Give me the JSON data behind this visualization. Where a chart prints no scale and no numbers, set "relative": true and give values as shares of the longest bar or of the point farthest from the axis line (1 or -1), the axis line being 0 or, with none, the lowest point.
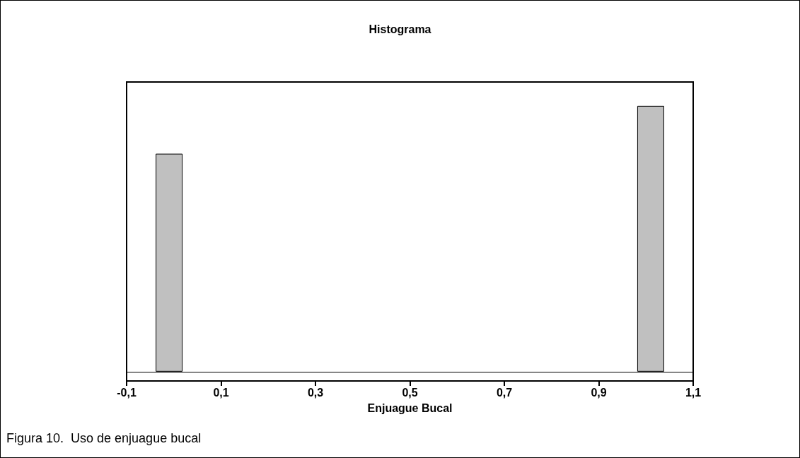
{
  "chart_data": {
    "type": "bar",
    "title": "Histograma",
    "xlabel": "Enjuague Bucal",
    "relative": true,
    "x": [
      -0.01,
      1.01
    ],
    "values": [
      0.82,
      1
    ],
    "color": "#c0c0c0",
    "xlim": [
      -0.1,
      1.1
    ],
    "xticks": [
      {
        "value": -0.1,
        "label": "-0,1"
      },
      {
        "value": 0.1,
        "label": "0,1"
      },
      {
        "value": 0.3,
        "label": "0,3"
      },
      {
        "value": 0.5,
        "label": "0,5"
      },
      {
        "value": 0.7,
        "label": "0,7"
      },
      {
        "value": 0.9,
        "label": "0,9"
      },
      {
        "value": 1.1,
        "label": "1,1"
      }
    ],
    "grid": false,
    "annotations": [
      "Figura 10.  Uso de enjuague bucal"
    ]
  }
}
